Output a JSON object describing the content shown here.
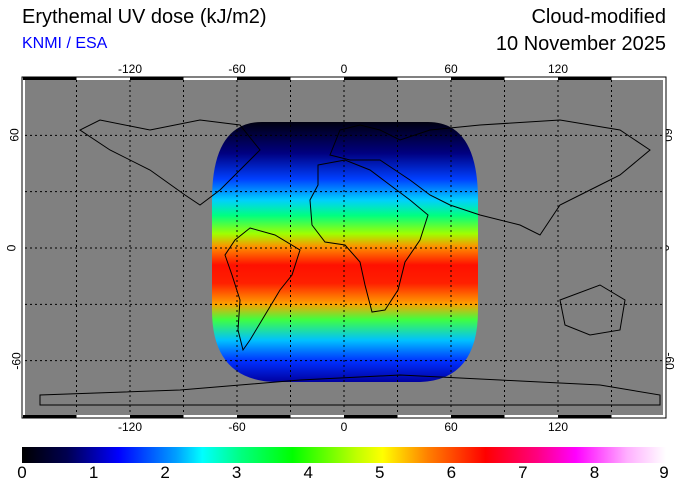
{
  "header": {
    "title": "Erythemal UV dose (kJ/m2)",
    "credit": "KNMI / ESA",
    "mode": "Cloud-modified",
    "date": "10 November 2025"
  },
  "map": {
    "lon_labels": [
      "-120",
      "-60",
      "0",
      "60",
      "120"
    ],
    "lat_labels": [
      "60",
      "0",
      "-60"
    ],
    "background": "#808080"
  },
  "colorbar": {
    "labels": [
      "0",
      "1",
      "2",
      "3",
      "4",
      "5",
      "6",
      "7",
      "8",
      "9"
    ],
    "min": 0,
    "max": 9,
    "unit": "kJ/m2"
  }
}
